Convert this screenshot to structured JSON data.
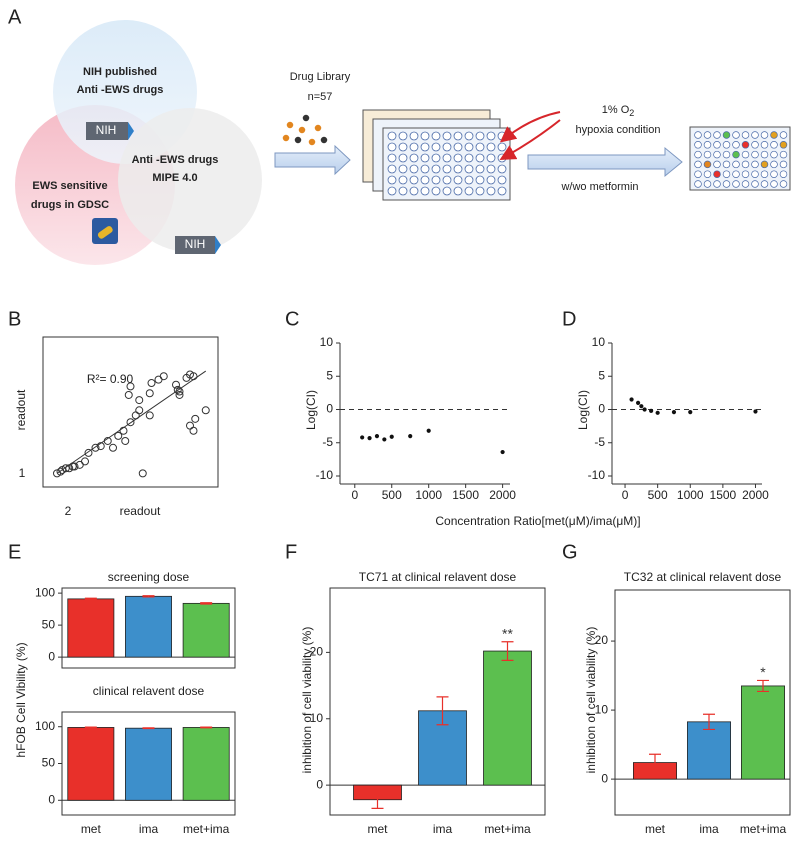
{
  "diagram": {
    "panel": "A",
    "nih_circle": [
      "NIH published",
      "Anti -EWS drugs"
    ],
    "nih_badge": "NIH",
    "mipe_circle": [
      "Anti -EWS drugs",
      "MIPE 4.0"
    ],
    "gdsc_circle": [
      "EWS sensitive",
      "drugs  in GDSC"
    ],
    "mipe_badge": "NIH",
    "library": [
      "Drug Library",
      "n=57"
    ],
    "oxygen": "1% O",
    "oxygen_sub": "2",
    "hypoxia": "hypoxia condition",
    "treatment": "w/wo metformin"
  },
  "chart_data": [
    {
      "type": "scatter",
      "panel": "B",
      "xlabel": "readout",
      "ylabel": "readout",
      "xlabel_index": "2",
      "ylabel_index": "1",
      "annotation": "R²= 0.90",
      "xlim": [
        0,
        1
      ],
      "ylim": [
        0,
        0.88
      ],
      "color": "#333333",
      "marker": "open",
      "x": [
        0.08,
        0.1,
        0.11,
        0.13,
        0.15,
        0.17,
        0.18,
        0.21,
        0.24,
        0.26,
        0.3,
        0.33,
        0.37,
        0.4,
        0.43,
        0.46,
        0.47,
        0.5,
        0.53,
        0.55,
        0.57,
        0.61,
        0.5,
        0.49,
        0.55,
        0.61,
        0.62,
        0.66,
        0.69,
        0.76,
        0.78,
        0.82,
        0.84,
        0.86,
        0.78,
        0.84,
        0.86,
        0.87,
        0.93,
        0.77
      ],
      "y": [
        0.08,
        0.09,
        0.1,
        0.11,
        0.11,
        0.12,
        0.12,
        0.13,
        0.15,
        0.2,
        0.23,
        0.24,
        0.27,
        0.23,
        0.3,
        0.33,
        0.27,
        0.38,
        0.42,
        0.45,
        0.08,
        0.42,
        0.59,
        0.54,
        0.51,
        0.55,
        0.61,
        0.63,
        0.65,
        0.6,
        0.54,
        0.64,
        0.66,
        0.65,
        0.56,
        0.36,
        0.33,
        0.4,
        0.45,
        0.57
      ],
      "fit_line": {
        "x": [
          0.08,
          0.93
        ],
        "y": [
          0.08,
          0.68
        ]
      }
    },
    {
      "type": "scatter",
      "panel": "C",
      "ylabel": "Log(CI)",
      "xlabel": "Concentration Ratio[met(μM)/ima(μM)]",
      "xlim": [
        -200,
        2100
      ],
      "ylim": [
        -10,
        10
      ],
      "xticks": [
        0,
        500,
        1000,
        1500,
        2000
      ],
      "yticks": [
        -10,
        -5,
        0,
        5,
        10
      ],
      "hline": 0,
      "color": "#111111",
      "marker": "filled",
      "x": [
        100,
        200,
        300,
        400,
        500,
        750,
        1000,
        2000
      ],
      "y": [
        -4.2,
        -4.3,
        -4,
        -4.5,
        -4.1,
        -4,
        -3.2,
        -6.4
      ]
    },
    {
      "type": "scatter",
      "panel": "D",
      "ylabel": "Log(CI)",
      "xlim": [
        -200,
        2100
      ],
      "ylim": [
        -10,
        10
      ],
      "xticks": [
        0,
        500,
        1000,
        1500,
        2000
      ],
      "yticks": [
        -10,
        -5,
        0,
        5,
        10
      ],
      "hline": 0,
      "color": "#111111",
      "marker": "filled",
      "x": [
        100,
        200,
        250,
        300,
        400,
        500,
        750,
        1000,
        2000
      ],
      "y": [
        1.5,
        1,
        0.5,
        0,
        -0.2,
        -0.5,
        -0.4,
        -0.4,
        -0.3
      ]
    },
    {
      "type": "bar",
      "panel": "E",
      "ylabel": "hFOB Cell Vibility (%)",
      "categories": [
        "met",
        "ima",
        "met+ima"
      ],
      "colors": [
        "#e8302a",
        "#3d8fcb",
        "#5cbf4f"
      ],
      "error_color": "#e8302a",
      "panels": [
        {
          "title": "screening dose",
          "ylim": [
            -17,
            108
          ],
          "yticks": [
            0,
            50,
            100
          ],
          "values": [
            91,
            95,
            84
          ],
          "errors": [
            1,
            1,
            1
          ]
        },
        {
          "title": "clinical relavent dose",
          "ylim": [
            -20,
            120
          ],
          "yticks": [
            0,
            50,
            100
          ],
          "values": [
            99,
            98,
            99
          ],
          "errors": [
            0.5,
            0.5,
            0.5
          ]
        }
      ]
    },
    {
      "type": "bar",
      "panel": "F",
      "title": "TC71 at clinical relavent dose",
      "ylabel": "inhibition of cell viability (%)",
      "categories": [
        "met",
        "ima",
        "met+ima"
      ],
      "colors": [
        "#e8302a",
        "#3d8fcb",
        "#5cbf4f"
      ],
      "error_color": "#e8302a",
      "ylim": [
        -4.5,
        29.7
      ],
      "yticks": [
        0,
        10,
        20
      ],
      "values": [
        -2.2,
        11.2,
        20.2
      ],
      "errors": [
        1.3,
        2.1,
        1.4
      ],
      "significance": [
        null,
        null,
        "**"
      ]
    },
    {
      "type": "bar",
      "panel": "G",
      "title": "TC32 at clinical relavent dose",
      "ylabel": "inhibition of cell viability (%)",
      "categories": [
        "met",
        "ima",
        "met+ima"
      ],
      "colors": [
        "#e8302a",
        "#3d8fcb",
        "#5cbf4f"
      ],
      "error_color": "#e8302a",
      "ylim": [
        -5.2,
        27.4
      ],
      "yticks": [
        0,
        10,
        20
      ],
      "values": [
        2.4,
        8.3,
        13.5
      ],
      "errors": [
        1.2,
        1.1,
        0.8
      ],
      "significance": [
        null,
        null,
        "*"
      ]
    }
  ]
}
